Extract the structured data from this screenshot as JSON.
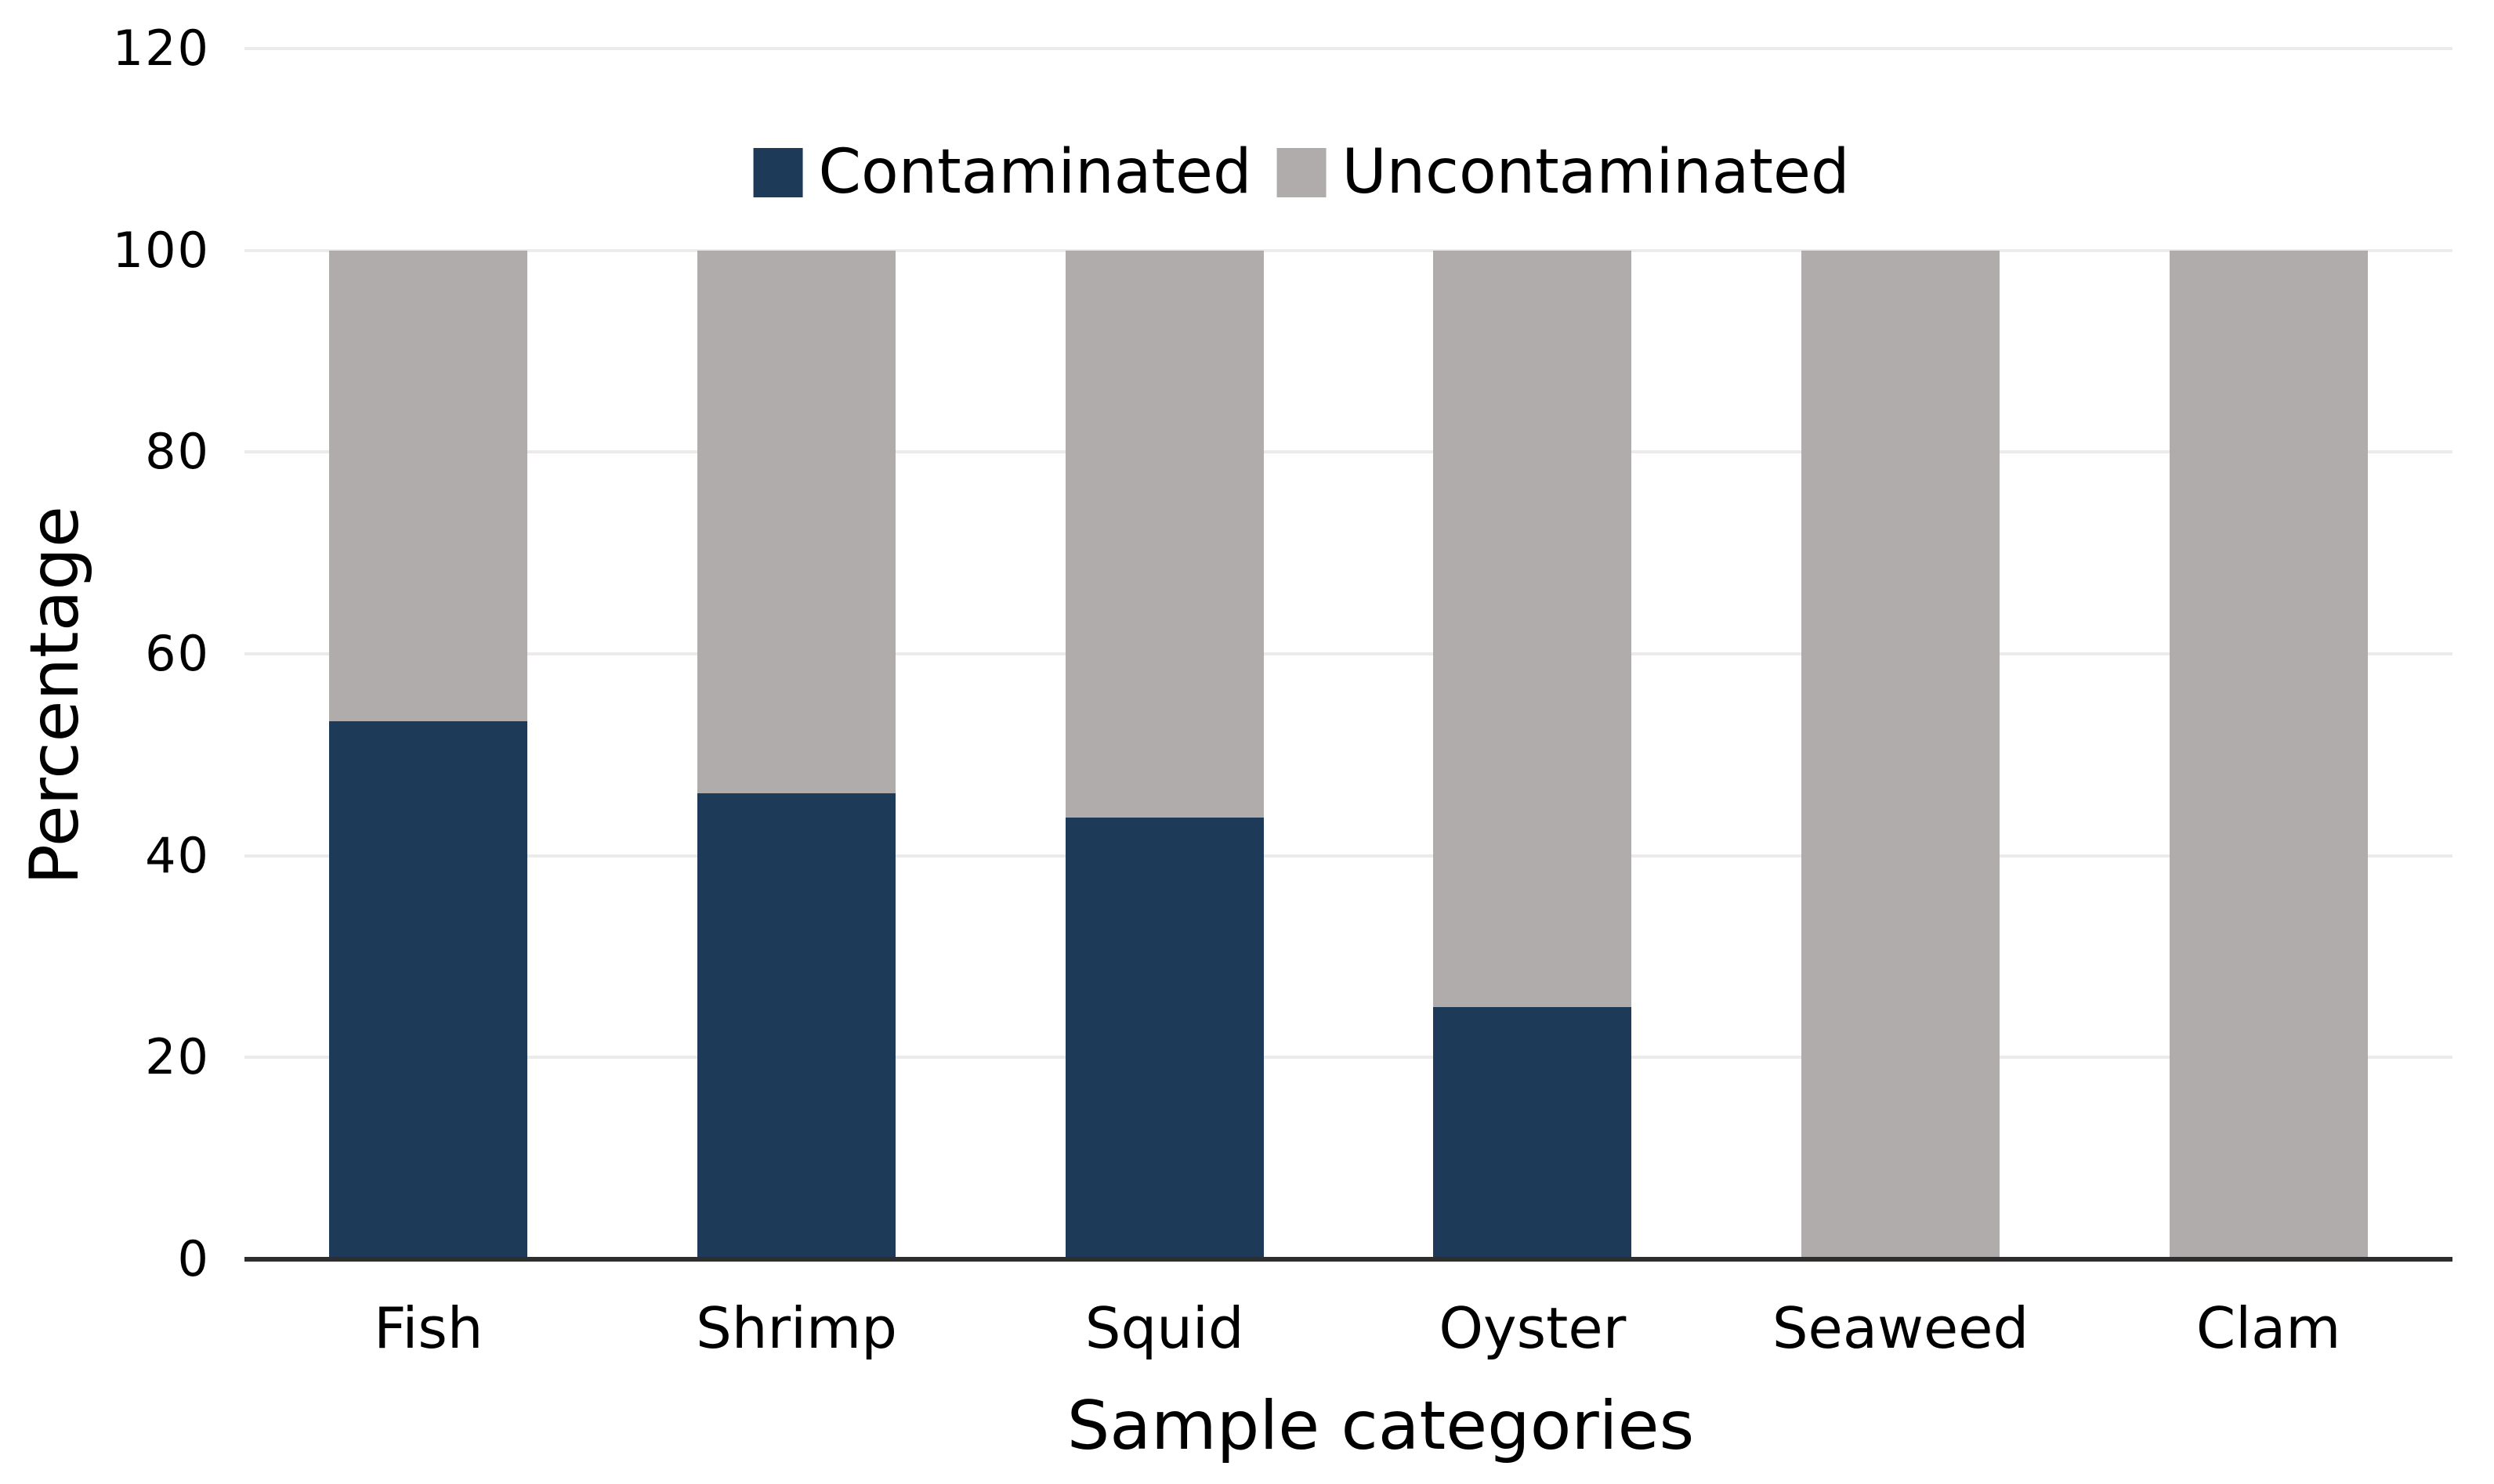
{
  "colors": {
    "contaminated": "#1d3a58",
    "uncontaminated": "#afacab",
    "gridline": "#eceaea",
    "axis_line": "#2e2e2e",
    "text": "#000000",
    "background": "#ffffff"
  },
  "chart_data": {
    "type": "bar",
    "stacked": true,
    "title": "",
    "xlabel": "Sample categories",
    "ylabel": "Percentage",
    "categories": [
      "Fish",
      "Shrimp",
      "Squid",
      "Oyster",
      "Seaweed",
      "Clam"
    ],
    "series": [
      {
        "name": "Contaminated",
        "color": "#1d3a58",
        "values": [
          53.3,
          46.2,
          43.8,
          25,
          0,
          0
        ]
      },
      {
        "name": "Uncontaminated",
        "color": "#afacab",
        "values": [
          46.7,
          53.8,
          56.2,
          75,
          100,
          100
        ]
      }
    ],
    "ylim": [
      0,
      120
    ],
    "yticks": [
      0,
      20,
      40,
      60,
      80,
      100,
      120
    ],
    "grid": true,
    "legend_position": "top-center-inside"
  }
}
